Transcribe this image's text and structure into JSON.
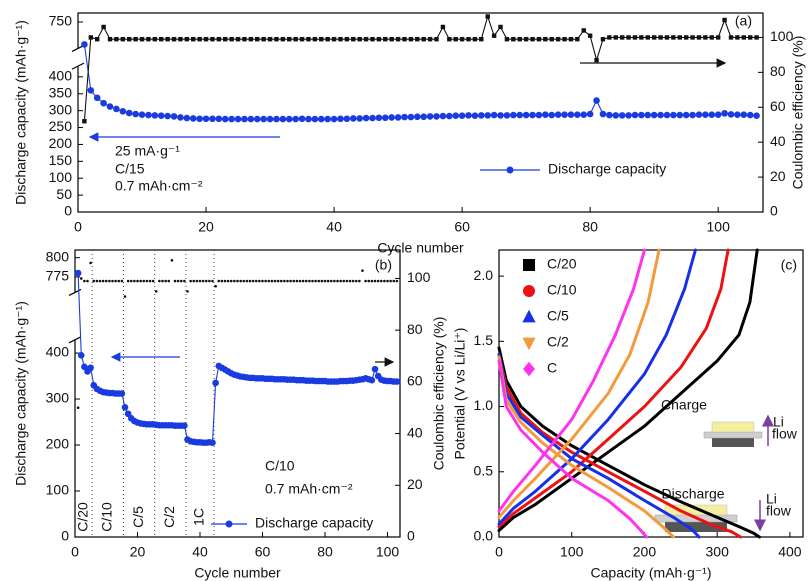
{
  "chart_data": [
    {
      "type": "scatter",
      "panel_label": "(a)",
      "xlabel": "Cycle number",
      "ylabel": "Discharge capacity (mAh·g⁻¹)",
      "y2label": "Coulombic efficiency (%)",
      "notes": [
        "25 mA·g⁻¹",
        "C/15",
        "0.7 mAh·cm⁻²"
      ],
      "xlim": [
        0,
        107
      ],
      "xticks": [
        0,
        20,
        40,
        60,
        80,
        100
      ],
      "ylim": [
        0,
        770
      ],
      "ybreak": [
        420,
        700
      ],
      "yticks": [
        0,
        50,
        100,
        150,
        200,
        250,
        300,
        350,
        400,
        750
      ],
      "y2lim": [
        0,
        114
      ],
      "y2ticks": [
        0,
        20,
        40,
        60,
        80,
        100
      ],
      "legend": "lower right",
      "x": [
        1,
        2,
        3,
        4,
        5,
        6,
        7,
        8,
        9,
        10,
        11,
        12,
        13,
        14,
        15,
        16,
        17,
        18,
        19,
        20,
        21,
        22,
        23,
        24,
        25,
        26,
        27,
        28,
        29,
        30,
        31,
        32,
        33,
        34,
        35,
        36,
        37,
        38,
        39,
        40,
        41,
        42,
        43,
        44,
        45,
        46,
        47,
        48,
        49,
        50,
        51,
        52,
        53,
        54,
        55,
        56,
        57,
        58,
        59,
        60,
        61,
        62,
        63,
        64,
        65,
        66,
        67,
        68,
        69,
        70,
        71,
        72,
        73,
        74,
        75,
        76,
        77,
        78,
        79,
        80,
        81,
        82,
        83,
        84,
        85,
        86,
        87,
        88,
        89,
        90,
        91,
        92,
        93,
        94,
        95,
        96,
        97,
        98,
        99,
        100,
        101,
        102,
        103,
        104,
        105,
        106
      ],
      "series": [
        {
          "name": "Discharge capacity",
          "color": "#1a3be0",
          "marker": "circle",
          "line": true,
          "axis": "y",
          "values": [
            700,
            360,
            338,
            322,
            312,
            305,
            298,
            293,
            290,
            288,
            287,
            286,
            285,
            284,
            283,
            280,
            278,
            277,
            276,
            276,
            276,
            276,
            275,
            275,
            275,
            275,
            275,
            275,
            275,
            275,
            275,
            275,
            275,
            275,
            276,
            275,
            275,
            275,
            275,
            275,
            276,
            276,
            277,
            277,
            278,
            278,
            279,
            279,
            280,
            280,
            281,
            281,
            282,
            282,
            283,
            283,
            284,
            284,
            285,
            285,
            286,
            285,
            286,
            286,
            287,
            286,
            286,
            287,
            287,
            287,
            287,
            287,
            288,
            287,
            288,
            288,
            288,
            288,
            288,
            290,
            330,
            290,
            287,
            286,
            286,
            286,
            287,
            287,
            287,
            287,
            287,
            287,
            287,
            287,
            287,
            287,
            288,
            288,
            288,
            288,
            292,
            289,
            288,
            288,
            287,
            285
          ]
        },
        {
          "color": "#111111",
          "marker": "square",
          "line": true,
          "axis": "y2",
          "values": [
            52,
            100,
            99,
            106,
            99,
            99,
            99,
            99,
            99,
            99,
            99,
            99,
            99,
            99,
            99,
            99,
            99,
            99,
            99,
            99,
            99,
            99,
            99,
            99,
            99,
            99,
            99,
            99,
            99,
            99,
            99,
            99,
            99,
            99,
            99,
            99,
            99,
            99,
            99,
            99,
            99,
            99,
            99,
            99,
            99,
            99,
            99,
            99,
            99,
            99,
            99,
            99,
            99,
            99,
            99,
            99,
            106,
            99,
            99,
            99,
            99,
            99,
            99,
            112,
            101,
            106,
            99,
            99,
            99,
            99,
            99,
            99,
            99,
            99,
            99,
            99,
            99,
            99,
            104,
            101,
            87,
            99,
            100,
            100,
            100,
            100,
            100,
            100,
            100,
            100,
            100,
            100,
            100,
            100,
            100,
            100,
            100,
            100,
            100,
            100,
            110,
            100,
            100,
            100,
            100,
            100
          ]
        }
      ]
    },
    {
      "type": "scatter",
      "panel_label": "(b)",
      "xlabel": "Cycle number",
      "ylabel": "Discharge capacity (mAh·g⁻¹)",
      "y2label": "Coulombic efficiency (%)",
      "notes": [
        "C/10",
        "0.7 mAh·cm⁻²"
      ],
      "dividers": [
        5.5,
        15.5,
        25.5,
        35.5,
        44.5
      ],
      "rate_labels": [
        "C/20",
        "C/10",
        "C/5",
        "C/2",
        "1C"
      ],
      "xlim": [
        0,
        104
      ],
      "xticks": [
        0,
        20,
        40,
        60,
        80,
        100
      ],
      "ylim": [
        0,
        810
      ],
      "ybreak": [
        420,
        760
      ],
      "yticks": [
        0,
        100,
        200,
        300,
        400,
        775,
        800
      ],
      "y2lim": [
        0,
        111
      ],
      "y2ticks": [
        0,
        20,
        40,
        60,
        80,
        100
      ],
      "legend": "lower right",
      "x": [
        1,
        2,
        3,
        4,
        5,
        6,
        7,
        8,
        9,
        10,
        11,
        12,
        13,
        14,
        15,
        16,
        17,
        18,
        19,
        20,
        21,
        22,
        23,
        24,
        25,
        26,
        27,
        28,
        29,
        30,
        31,
        32,
        33,
        34,
        35,
        36,
        37,
        38,
        39,
        40,
        41,
        42,
        43,
        44,
        45,
        46,
        47,
        48,
        49,
        50,
        51,
        52,
        53,
        54,
        55,
        56,
        57,
        58,
        59,
        60,
        61,
        62,
        63,
        64,
        65,
        66,
        67,
        68,
        69,
        70,
        71,
        72,
        73,
        74,
        75,
        76,
        77,
        78,
        79,
        80,
        81,
        82,
        83,
        84,
        85,
        86,
        87,
        88,
        89,
        90,
        91,
        92,
        93,
        94,
        95,
        96,
        97,
        98,
        99,
        100,
        101,
        102,
        103
      ],
      "series": [
        {
          "name": "Discharge capacity",
          "color": "#1a3be0",
          "marker": "circle",
          "line": true,
          "axis": "y",
          "values": [
            780,
            395,
            370,
            360,
            368,
            330,
            322,
            318,
            315,
            314,
            313,
            313,
            312,
            312,
            312,
            282,
            268,
            258,
            252,
            249,
            247,
            246,
            245,
            245,
            245,
            244,
            243,
            243,
            243,
            243,
            243,
            242,
            242,
            242,
            242,
            212,
            208,
            207,
            206,
            206,
            205,
            205,
            206,
            205,
            335,
            372,
            368,
            364,
            360,
            356,
            353,
            351,
            349,
            348,
            347,
            346,
            346,
            345,
            345,
            345,
            344,
            344,
            344,
            343,
            343,
            343,
            343,
            342,
            342,
            342,
            341,
            341,
            341,
            340,
            340,
            340,
            339,
            339,
            339,
            339,
            338,
            338,
            338,
            338,
            339,
            339,
            339,
            340,
            340,
            341,
            342,
            343,
            345,
            343,
            341,
            365,
            350,
            342,
            340,
            339,
            339,
            338,
            338
          ]
        },
        {
          "color": "#111111",
          "marker": "dot",
          "line": false,
          "axis": "y2",
          "values": [
            50,
            100,
            99,
            99,
            106,
            99,
            99,
            99,
            99,
            99,
            99,
            99,
            99,
            99,
            99,
            93,
            99,
            99,
            99,
            99,
            99,
            99,
            99,
            99,
            99,
            95,
            99,
            99,
            99,
            99,
            107,
            99,
            99,
            99,
            99,
            95,
            99,
            99,
            99,
            99,
            99,
            99,
            99,
            99,
            97,
            99,
            99,
            99,
            99,
            99,
            99,
            99,
            99,
            99,
            99,
            99,
            99,
            99,
            99,
            99,
            99,
            99,
            99,
            99,
            99,
            99,
            99,
            99,
            99,
            99,
            99,
            99,
            99,
            99,
            99,
            99,
            99,
            99,
            99,
            99,
            99,
            99,
            99,
            99,
            99,
            99,
            99,
            99,
            99,
            99,
            99,
            103,
            99,
            99,
            99,
            99,
            99,
            99,
            99,
            99,
            99,
            99,
            99
          ]
        }
      ]
    },
    {
      "type": "line",
      "panel_label": "(c)",
      "xlabel": "Capacity (mAh·g⁻¹)",
      "ylabel": "Potential (V vs Li/Li⁺)",
      "notes": [
        "Charge",
        "Discharge",
        "Li",
        "flow",
        "Li",
        "flow"
      ],
      "xlim": [
        0,
        418
      ],
      "xticks": [
        0,
        100,
        200,
        300,
        400
      ],
      "ylim": [
        0,
        2.2
      ],
      "yticks": [
        {
          "value": 0,
          "label": "0.0"
        },
        0.5,
        {
          "value": 1,
          "label": "1.0"
        },
        1.5,
        {
          "value": 2,
          "label": "2.0"
        }
      ],
      "legend": "upper left",
      "series": [
        {
          "name": "C/20",
          "color": "#000000",
          "marker": "square",
          "discharge": {
            "x": [
              0,
              10,
              30,
              60,
              100,
              150,
              200,
              250,
              300,
              330,
              350,
              358
            ],
            "y": [
              1.45,
              1.2,
              1.0,
              0.85,
              0.7,
              0.55,
              0.4,
              0.27,
              0.15,
              0.08,
              0.03,
              0.0
            ]
          },
          "charge": {
            "x": [
              0,
              20,
              50,
              100,
              150,
              200,
              250,
              300,
              330,
              345,
              355
            ],
            "y": [
              0.05,
              0.15,
              0.25,
              0.45,
              0.65,
              0.85,
              1.1,
              1.35,
              1.55,
              1.8,
              2.2
            ]
          }
        },
        {
          "name": "C/10",
          "color": "#ee1111",
          "marker": "circle",
          "discharge": {
            "x": [
              0,
              10,
              30,
              60,
              100,
              150,
              200,
              250,
              290,
              320,
              332
            ],
            "y": [
              1.4,
              1.15,
              0.95,
              0.8,
              0.65,
              0.5,
              0.35,
              0.2,
              0.1,
              0.04,
              0.0
            ]
          },
          "charge": {
            "x": [
              0,
              20,
              50,
              100,
              150,
              200,
              250,
              285,
              305,
              315
            ],
            "y": [
              0.08,
              0.18,
              0.3,
              0.5,
              0.75,
              1.0,
              1.3,
              1.6,
              1.9,
              2.2
            ]
          }
        },
        {
          "name": "C/5",
          "color": "#1530e8",
          "marker": "triangle-up",
          "discharge": {
            "x": [
              0,
              10,
              30,
              60,
              100,
              150,
              200,
              240,
              265,
              275
            ],
            "y": [
              1.4,
              1.1,
              0.92,
              0.78,
              0.6,
              0.45,
              0.28,
              0.15,
              0.06,
              0.0
            ]
          },
          "charge": {
            "x": [
              0,
              20,
              50,
              100,
              150,
              200,
              230,
              255,
              270
            ],
            "y": [
              0.1,
              0.22,
              0.35,
              0.6,
              0.9,
              1.25,
              1.55,
              1.9,
              2.2
            ]
          }
        },
        {
          "name": "C/2",
          "color": "#f39a3c",
          "marker": "triangle-down",
          "discharge": {
            "x": [
              0,
              10,
              30,
              60,
              100,
              150,
              200,
              225,
              240
            ],
            "y": [
              1.38,
              1.05,
              0.88,
              0.72,
              0.55,
              0.38,
              0.2,
              0.08,
              0.0
            ]
          },
          "charge": {
            "x": [
              0,
              20,
              50,
              100,
              150,
              180,
              205,
              220
            ],
            "y": [
              0.15,
              0.28,
              0.45,
              0.75,
              1.1,
              1.4,
              1.8,
              2.2
            ]
          }
        },
        {
          "name": "C",
          "color": "#ff33ee",
          "marker": "diamond",
          "discharge": {
            "x": [
              0,
              10,
              30,
              60,
              100,
              150,
              180,
              195,
              203
            ],
            "y": [
              1.35,
              1.0,
              0.82,
              0.65,
              0.45,
              0.28,
              0.14,
              0.05,
              0.0
            ]
          },
          "charge": {
            "x": [
              0,
              20,
              50,
              100,
              130,
              160,
              185,
              200
            ],
            "y": [
              0.2,
              0.35,
              0.55,
              0.9,
              1.2,
              1.55,
              1.9,
              2.2
            ]
          }
        }
      ]
    }
  ]
}
